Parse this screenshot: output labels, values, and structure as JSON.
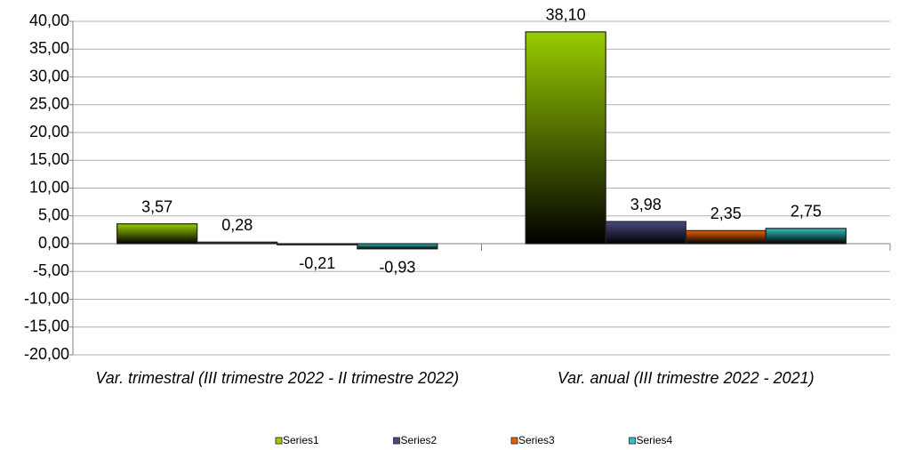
{
  "chart_data": {
    "type": "bar",
    "categories": [
      "Var. trimestral (III trimestre 2022 - II trimestre 2022)",
      "Var. anual (III trimestre 2022 - 2021)"
    ],
    "series": [
      {
        "name": "Series1",
        "color": "#99cc00",
        "values": [
          3.57,
          38.1
        ],
        "value_labels": [
          "3,57",
          "38,10"
        ]
      },
      {
        "name": "Series2",
        "color": "#4b4b80",
        "values": [
          0.28,
          3.98
        ],
        "value_labels": [
          "0,28",
          "3,98"
        ]
      },
      {
        "name": "Series3",
        "color": "#e8600a",
        "values": [
          -0.21,
          2.35
        ],
        "value_labels": [
          "-0,21",
          "2,35"
        ]
      },
      {
        "name": "Series4",
        "color": "#33c0c0",
        "values": [
          -0.93,
          2.75
        ],
        "value_labels": [
          "-0,93",
          "2,75"
        ]
      }
    ],
    "ylim": [
      -20,
      40
    ],
    "yticks": [
      {
        "value": -20,
        "label": "-20,00"
      },
      {
        "value": -15,
        "label": "-15,00"
      },
      {
        "value": -10,
        "label": "-10,00"
      },
      {
        "value": -5,
        "label": "-5,00"
      },
      {
        "value": 0,
        "label": "0,00"
      },
      {
        "value": 5,
        "label": "5,00"
      },
      {
        "value": 10,
        "label": "10,00"
      },
      {
        "value": 15,
        "label": "15,00"
      },
      {
        "value": 20,
        "label": "20,00"
      },
      {
        "value": 25,
        "label": "25,00"
      },
      {
        "value": 30,
        "label": "30,00"
      },
      {
        "value": 35,
        "label": "35,00"
      },
      {
        "value": 40,
        "label": "40,00"
      }
    ],
    "grid": true,
    "legend": "bottom"
  }
}
